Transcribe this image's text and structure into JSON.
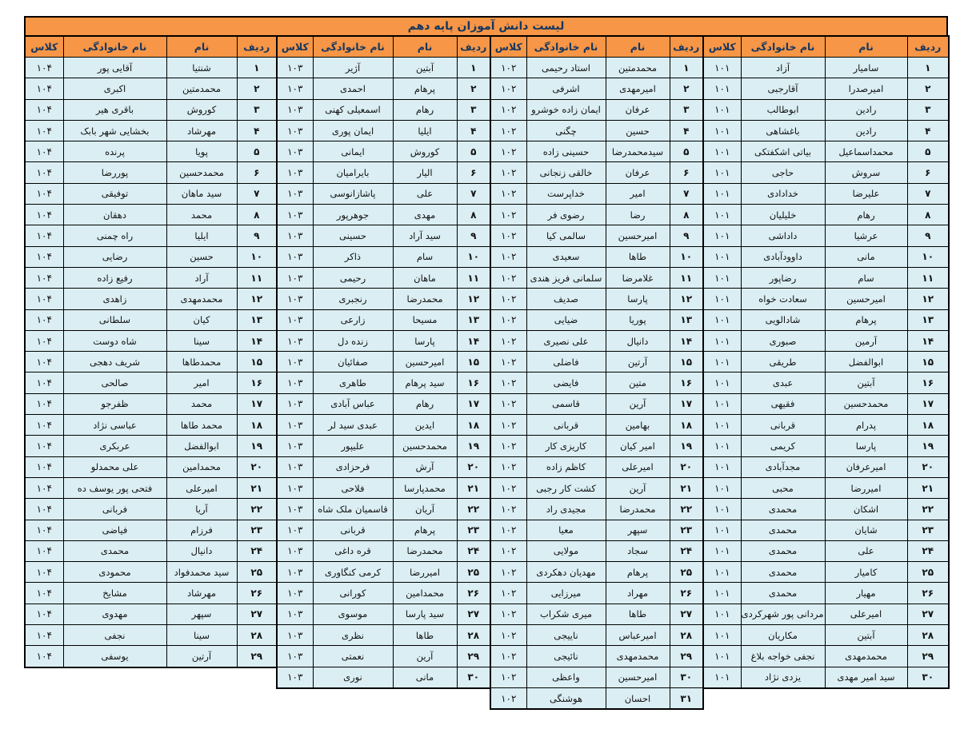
{
  "title": "لیست دانش آموزان پایه دهم",
  "columns": {
    "rank": "ردیف",
    "first_name": "نام",
    "last_name": "نام خانوادگی",
    "klass": "کلاس"
  },
  "colors": {
    "header_bg": "#F79646",
    "cell_bg": "#DAEEF3",
    "header_text": "#17375E",
    "cell_text": "#131313",
    "border": "#000000"
  },
  "groups": [
    {
      "class_label": "۱۰۱",
      "rows": [
        [
          "۱",
          "سامیار",
          "آزاد"
        ],
        [
          "۲",
          "امیرصدرا",
          "آقارجبی"
        ],
        [
          "۳",
          "رادین",
          "ابوطالب"
        ],
        [
          "۴",
          "رادین",
          "باغشاهی"
        ],
        [
          "۵",
          "محمداسماعیل",
          "بیاتی اشکفتکی"
        ],
        [
          "۶",
          "سروش",
          "حاجی"
        ],
        [
          "۷",
          "علیرضا",
          "خدادادی"
        ],
        [
          "۸",
          "رهام",
          "خلیلیان"
        ],
        [
          "۹",
          "عرشیا",
          "داداشی"
        ],
        [
          "۱۰",
          "مانی",
          "داوودآبادی"
        ],
        [
          "۱۱",
          "سام",
          "رضاپور"
        ],
        [
          "۱۲",
          "امیرحسین",
          "سعادت خواه"
        ],
        [
          "۱۳",
          "پرهام",
          "شادالویی"
        ],
        [
          "۱۴",
          "آرمین",
          "صبوری"
        ],
        [
          "۱۵",
          "ابوالفضل",
          "طریقی"
        ],
        [
          "۱۶",
          "آبتین",
          "عبدی"
        ],
        [
          "۱۷",
          "محمدحسین",
          "فقیهی"
        ],
        [
          "۱۸",
          "پدرام",
          "قربانی"
        ],
        [
          "۱۹",
          "پارسا",
          "کریمی"
        ],
        [
          "۲۰",
          "امیرعرفان",
          "مجدآبادی"
        ],
        [
          "۲۱",
          "امیررضا",
          "محبی"
        ],
        [
          "۲۲",
          "اشکان",
          "محمدی"
        ],
        [
          "۲۳",
          "شایان",
          "محمدی"
        ],
        [
          "۲۴",
          "علی",
          "محمدی"
        ],
        [
          "۲۵",
          "کامیار",
          "محمدی"
        ],
        [
          "۲۶",
          "مهیار",
          "محمدی"
        ],
        [
          "۲۷",
          "امیرعلی",
          "مردانی پور شهرکردی"
        ],
        [
          "۲۸",
          "آبتین",
          "مکاریان"
        ],
        [
          "۲۹",
          "محمدمهدی",
          "نجفی خواجه بلاغ"
        ],
        [
          "۳۰",
          "سید امیر مهدی",
          "یزدی نژاد"
        ]
      ]
    },
    {
      "class_label": "۱۰۲",
      "rows": [
        [
          "۱",
          "محمدمتین",
          "استاد رحیمی"
        ],
        [
          "۲",
          "امیرمهدی",
          "اشرفی"
        ],
        [
          "۳",
          "عرفان",
          "ایمان زاده خوشرو"
        ],
        [
          "۴",
          "حسین",
          "چگنی"
        ],
        [
          "۵",
          "سیدمحمدرضا",
          "حسینی زاده"
        ],
        [
          "۶",
          "عرفان",
          "خالقی زنجانی"
        ],
        [
          "۷",
          "امیر",
          "خداپرست"
        ],
        [
          "۸",
          "رضا",
          "رضوی فر"
        ],
        [
          "۹",
          "امیرحسین",
          "سالمی کیا"
        ],
        [
          "۱۰",
          "طاها",
          "سعیدی"
        ],
        [
          "۱۱",
          "غلامرضا",
          "سلمانی فریز هندی"
        ],
        [
          "۱۲",
          "پارسا",
          "صدیف"
        ],
        [
          "۱۳",
          "پوریا",
          "ضیایی"
        ],
        [
          "۱۴",
          "دانیال",
          "علی نصیری"
        ],
        [
          "۱۵",
          "آرتین",
          "فاضلی"
        ],
        [
          "۱۶",
          "متین",
          "فایضی"
        ],
        [
          "۱۷",
          "آرین",
          "قاسمی"
        ],
        [
          "۱۸",
          "بهامین",
          "قربانی"
        ],
        [
          "۱۹",
          "امیر کیان",
          "کاریزی کار"
        ],
        [
          "۲۰",
          "امیرعلی",
          "کاظم زاده"
        ],
        [
          "۲۱",
          "آرین",
          "کشت کار رجبی"
        ],
        [
          "۲۲",
          "محمدرضا",
          "مجیدی راد"
        ],
        [
          "۲۳",
          "سپهر",
          "معیا"
        ],
        [
          "۲۴",
          "سجاد",
          "مولایی"
        ],
        [
          "۲۵",
          "پرهام",
          "مهدیان دهکردی"
        ],
        [
          "۲۶",
          "مهراد",
          "میرزایی"
        ],
        [
          "۲۷",
          "طاها",
          "میری شکراب"
        ],
        [
          "۲۸",
          "امیرعباس",
          "ناییجی"
        ],
        [
          "۲۹",
          "محمدمهدی",
          "نائیجی"
        ],
        [
          "۳۰",
          "امیرحسین",
          "واعظی"
        ],
        [
          "۳۱",
          "احسان",
          "هوشنگی"
        ]
      ]
    },
    {
      "class_label": "۱۰۳",
      "rows": [
        [
          "۱",
          "آبتین",
          "آژیر"
        ],
        [
          "۲",
          "پرهام",
          "احمدی"
        ],
        [
          "۳",
          "رهام",
          "اسمعیلی کهنی"
        ],
        [
          "۴",
          "ایلیا",
          "ایمان پوری"
        ],
        [
          "۵",
          "کوروش",
          "ایمانی"
        ],
        [
          "۶",
          "الیار",
          "بایرامیان"
        ],
        [
          "۷",
          "علی",
          "پاشازانوسی"
        ],
        [
          "۸",
          "مهدی",
          "جوهرپور"
        ],
        [
          "۹",
          "سید آراد",
          "حسینی"
        ],
        [
          "۱۰",
          "سام",
          "ذاکر"
        ],
        [
          "۱۱",
          "ماهان",
          "رحیمی"
        ],
        [
          "۱۲",
          "محمدرضا",
          "رنجبری"
        ],
        [
          "۱۳",
          "مسیحا",
          "زارعی"
        ],
        [
          "۱۴",
          "پارسا",
          "زنده دل"
        ],
        [
          "۱۵",
          "امیرحسین",
          "صفائیان"
        ],
        [
          "۱۶",
          "سید پرهام",
          "طاهری"
        ],
        [
          "۱۷",
          "رهام",
          "عباس آبادی"
        ],
        [
          "۱۸",
          "ایدین",
          "عبدی سید لر"
        ],
        [
          "۱۹",
          "محمدحسین",
          "علیپور"
        ],
        [
          "۲۰",
          "آرش",
          "فرحزادی"
        ],
        [
          "۲۱",
          "محمدپارسا",
          "فلاحی"
        ],
        [
          "۲۲",
          "آریان",
          "قاسمیان ملک شاه"
        ],
        [
          "۲۳",
          "پرهام",
          "قربانی"
        ],
        [
          "۲۴",
          "محمدرضا",
          "قره داغی"
        ],
        [
          "۲۵",
          "امیررضا",
          "کرمی کنگاوری"
        ],
        [
          "۲۶",
          "محمدامین",
          "کورانی"
        ],
        [
          "۲۷",
          "سید پارسا",
          "موسوی"
        ],
        [
          "۲۸",
          "طاها",
          "نظری"
        ],
        [
          "۲۹",
          "آرین",
          "نعمتی"
        ],
        [
          "۳۰",
          "مانی",
          "نوری"
        ]
      ]
    },
    {
      "class_label": "۱۰۴",
      "rows": [
        [
          "۱",
          "شنتیا",
          "آقایی پور"
        ],
        [
          "۲",
          "محمدمتین",
          "اکبری"
        ],
        [
          "۳",
          "کوروش",
          "باقری هیر"
        ],
        [
          "۴",
          "مهرشاد",
          "بخشایی شهر بابک"
        ],
        [
          "۵",
          "پویا",
          "پرنده"
        ],
        [
          "۶",
          "محمدحسین",
          "پوررضا"
        ],
        [
          "۷",
          "سید ماهان",
          "توفیقی"
        ],
        [
          "۸",
          "محمد",
          "دهقان"
        ],
        [
          "۹",
          "ایلیا",
          "راه چمنی"
        ],
        [
          "۱۰",
          "حسین",
          "رضایی"
        ],
        [
          "۱۱",
          "آراد",
          "رفیع زاده"
        ],
        [
          "۱۲",
          "محمدمهدی",
          "زاهدی"
        ],
        [
          "۱۳",
          "کیان",
          "سلطانی"
        ],
        [
          "۱۴",
          "سینا",
          "شاه دوست"
        ],
        [
          "۱۵",
          "محمدطاها",
          "شریف دهجی"
        ],
        [
          "۱۶",
          "امیر",
          "صالحی"
        ],
        [
          "۱۷",
          "محمد",
          "ظفرجو"
        ],
        [
          "۱۸",
          "محمد طاها",
          "عباسی نژاد"
        ],
        [
          "۱۹",
          "ابوالفضل",
          "عربکری"
        ],
        [
          "۲۰",
          "محمدامین",
          "علی محمدلو"
        ],
        [
          "۲۱",
          "امیرعلی",
          "فتحی پور یوسف ده"
        ],
        [
          "۲۲",
          "آریا",
          "فربانی"
        ],
        [
          "۲۳",
          "فرزام",
          "فیاضی"
        ],
        [
          "۲۴",
          "دانیال",
          "محمدی"
        ],
        [
          "۲۵",
          "سید محمدفواد",
          "محمودی"
        ],
        [
          "۲۶",
          "مهرشاد",
          "مشایخ"
        ],
        [
          "۲۷",
          "سپهر",
          "مهدوی"
        ],
        [
          "۲۸",
          "سینا",
          "نجفی"
        ],
        [
          "۲۹",
          "آرتین",
          "یوسفی"
        ]
      ]
    }
  ]
}
